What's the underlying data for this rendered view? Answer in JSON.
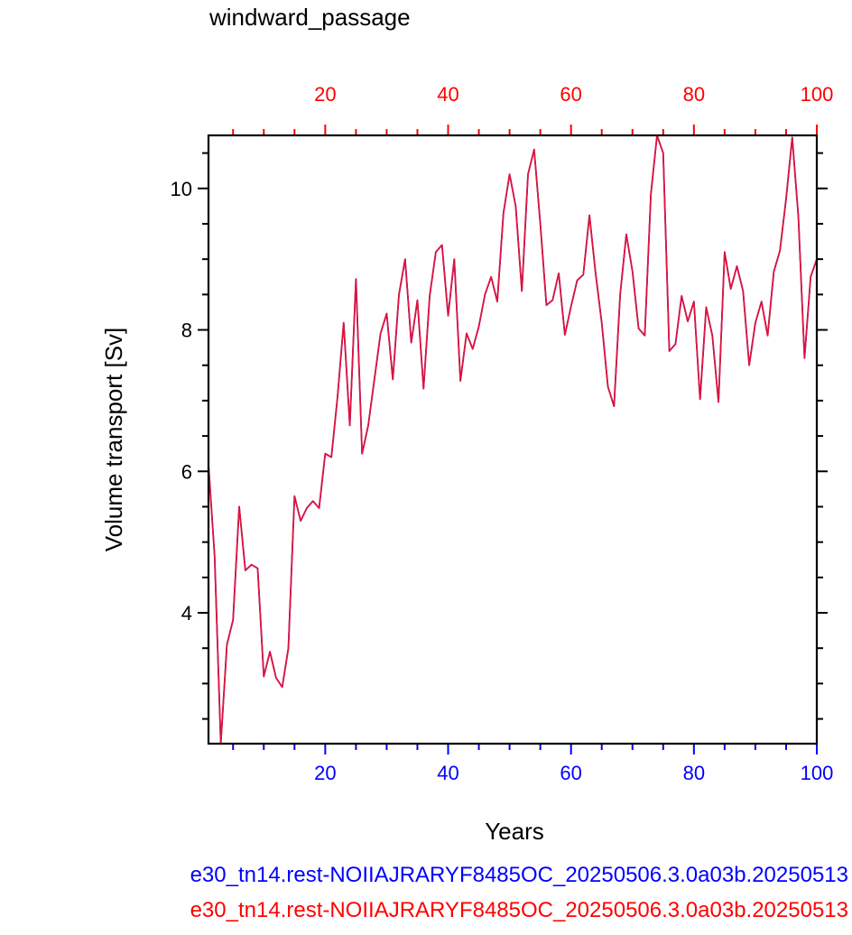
{
  "chart_data": {
    "type": "line",
    "title": "windward_passage",
    "xlabel": "Years",
    "ylabel": "Volume transport [Sv]",
    "xlim": [
      1,
      100
    ],
    "ylim": [
      2.15,
      10.75
    ],
    "x_ticks_bottom": [
      20,
      40,
      60,
      80,
      100
    ],
    "x_ticks_top": [
      20,
      40,
      60,
      80,
      100
    ],
    "y_ticks": [
      4,
      6,
      8,
      10
    ],
    "grid": false,
    "colors": {
      "bottom_axis": "#0000ff",
      "top_axis": "#ff0000",
      "series_a": "#0000ff",
      "series_b": "#ff0000",
      "line_visible": "#dc143c"
    },
    "series": [
      {
        "name": "e30_tn14.rest-NOIIAJRARYF8485OC_20250506.3.0a03b.20250513",
        "axis": "bottom",
        "x": [
          1,
          2,
          3,
          4,
          5,
          6,
          7,
          8,
          9,
          10,
          11,
          12,
          13,
          14,
          15,
          16,
          17,
          18,
          19,
          20,
          21,
          22,
          23,
          24,
          25,
          26,
          27,
          28,
          29,
          30,
          31,
          32,
          33,
          34,
          35,
          36,
          37,
          38,
          39,
          40,
          41,
          42,
          43,
          44,
          45,
          46,
          47,
          48,
          49,
          50,
          51,
          52,
          53,
          54,
          55,
          56,
          57,
          58,
          59,
          60,
          61,
          62,
          63,
          64,
          65,
          66,
          67,
          68,
          69,
          70,
          71,
          72,
          73,
          74,
          75,
          76,
          77,
          78,
          79,
          80,
          81,
          82,
          83,
          84,
          85,
          86,
          87,
          88,
          89,
          90,
          91,
          92,
          93,
          94,
          95,
          96,
          97,
          98,
          99,
          100
        ],
        "values": [
          6.1,
          4.8,
          2.15,
          3.55,
          3.9,
          5.5,
          4.6,
          4.68,
          4.63,
          3.1,
          3.45,
          3.08,
          2.95,
          3.5,
          5.65,
          5.3,
          5.48,
          5.58,
          5.48,
          6.25,
          6.2,
          7.05,
          8.1,
          6.65,
          8.72,
          6.25,
          6.65,
          7.3,
          7.95,
          8.23,
          7.3,
          8.5,
          9.0,
          7.82,
          8.42,
          7.17,
          8.48,
          9.1,
          9.2,
          8.2,
          9.0,
          7.28,
          7.95,
          7.73,
          8.05,
          8.5,
          8.75,
          8.4,
          9.65,
          10.2,
          9.75,
          8.55,
          10.2,
          10.55,
          9.5,
          8.35,
          8.42,
          8.8,
          7.93,
          8.33,
          8.7,
          8.78,
          9.62,
          8.8,
          8.1,
          7.2,
          6.92,
          8.5,
          9.35,
          8.83,
          8.02,
          7.92,
          9.92,
          10.75,
          10.5,
          7.7,
          7.8,
          8.48,
          8.12,
          8.4,
          7.02,
          8.32,
          7.92,
          6.98,
          9.1,
          8.58,
          8.9,
          8.55,
          7.5,
          8.1,
          8.4,
          7.92,
          8.82,
          9.12,
          9.85,
          10.72,
          9.6,
          7.6,
          8.75,
          9.0
        ]
      },
      {
        "name": "e30_tn14.rest-NOIIAJRARYF8485OC_20250506.3.0a03b.20250513",
        "axis": "top",
        "x": [
          1,
          2,
          3,
          4,
          5,
          6,
          7,
          8,
          9,
          10,
          11,
          12,
          13,
          14,
          15,
          16,
          17,
          18,
          19,
          20,
          21,
          22,
          23,
          24,
          25,
          26,
          27,
          28,
          29,
          30,
          31,
          32,
          33,
          34,
          35,
          36,
          37,
          38,
          39,
          40,
          41,
          42,
          43,
          44,
          45,
          46,
          47,
          48,
          49,
          50,
          51,
          52,
          53,
          54,
          55,
          56,
          57,
          58,
          59,
          60,
          61,
          62,
          63,
          64,
          65,
          66,
          67,
          68,
          69,
          70,
          71,
          72,
          73,
          74,
          75,
          76,
          77,
          78,
          79,
          80,
          81,
          82,
          83,
          84,
          85,
          86,
          87,
          88,
          89,
          90,
          91,
          92,
          93,
          94,
          95,
          96,
          97,
          98,
          99,
          100
        ],
        "values": [
          6.1,
          4.8,
          2.15,
          3.55,
          3.9,
          5.5,
          4.6,
          4.68,
          4.63,
          3.1,
          3.45,
          3.08,
          2.95,
          3.5,
          5.65,
          5.3,
          5.48,
          5.58,
          5.48,
          6.25,
          6.2,
          7.05,
          8.1,
          6.65,
          8.72,
          6.25,
          6.65,
          7.3,
          7.95,
          8.23,
          7.3,
          8.5,
          9.0,
          7.82,
          8.42,
          7.17,
          8.48,
          9.1,
          9.2,
          8.2,
          9.0,
          7.28,
          7.95,
          7.73,
          8.05,
          8.5,
          8.75,
          8.4,
          9.65,
          10.2,
          9.75,
          8.55,
          10.2,
          10.55,
          9.5,
          8.35,
          8.42,
          8.8,
          7.93,
          8.33,
          8.7,
          8.78,
          9.62,
          8.8,
          8.1,
          7.2,
          6.92,
          8.5,
          9.35,
          8.83,
          8.02,
          7.92,
          9.92,
          10.75,
          10.5,
          7.7,
          7.8,
          8.48,
          8.12,
          8.4,
          7.02,
          8.32,
          7.92,
          6.98,
          9.1,
          8.58,
          8.9,
          8.55,
          7.5,
          8.1,
          8.4,
          7.92,
          8.82,
          9.12,
          9.85,
          10.72,
          9.6,
          7.6,
          8.75,
          9.0
        ]
      }
    ]
  }
}
